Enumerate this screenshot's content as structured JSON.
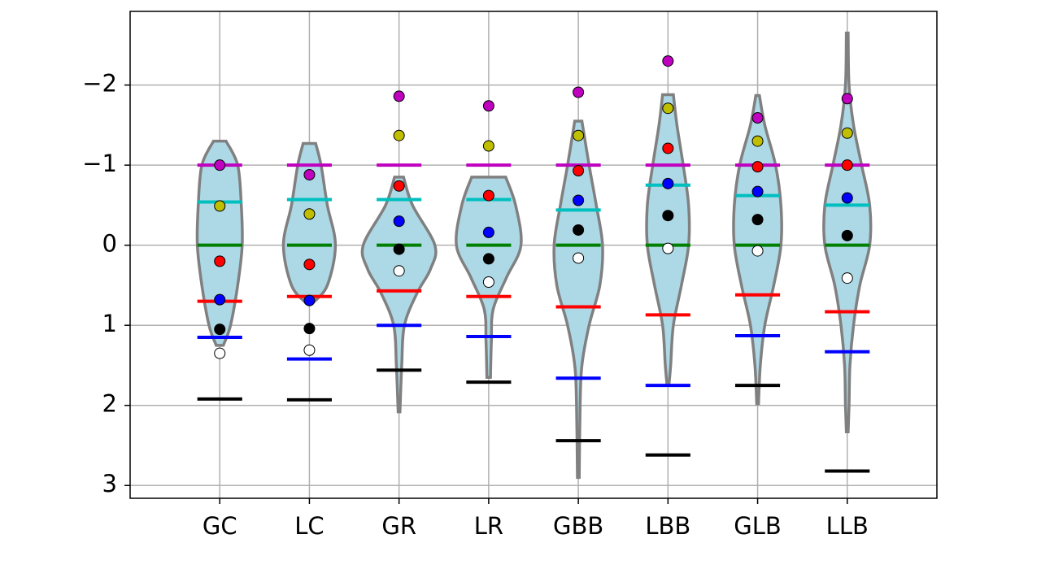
{
  "chart_data": {
    "type": "violin",
    "categories": [
      "GC",
      "LC",
      "GR",
      "LR",
      "GBB",
      "LBB",
      "GLB",
      "LLB"
    ],
    "ylim": [
      -2.92,
      3.16
    ],
    "y_inverted": true,
    "yticks": [
      {
        "value": -2,
        "label": "−2"
      },
      {
        "value": -1,
        "label": "−1"
      },
      0,
      1,
      2,
      3
    ],
    "grid": true,
    "violin_color": "#add8e6",
    "violin_edge_color": "#808080",
    "violins": [
      {
        "y": [
          -1.3,
          -1.0,
          -0.5,
          0,
          0.5,
          1.0,
          1.25
        ],
        "width": [
          0.07,
          0.2,
          0.24,
          0.25,
          0.2,
          0.12,
          0.04
        ]
      },
      {
        "y": [
          -1.27,
          -1.0,
          -0.5,
          0,
          0.5,
          0.72
        ],
        "width": [
          0.07,
          0.13,
          0.2,
          0.29,
          0.2,
          0.04
        ]
      },
      {
        "y": [
          -0.85,
          -0.5,
          0,
          0.3,
          0.6,
          1.0,
          1.5,
          2.08
        ],
        "width": [
          0.05,
          0.15,
          0.4,
          0.35,
          0.2,
          0.06,
          0.03,
          0.01
        ]
      },
      {
        "y": [
          -0.85,
          -0.5,
          0,
          0.4,
          0.8,
          1.2,
          1.65
        ],
        "width": [
          0.19,
          0.3,
          0.36,
          0.2,
          0.05,
          0.03,
          0.02
        ]
      },
      {
        "y": [
          -1.55,
          -1.0,
          -0.5,
          0,
          0.5,
          1.0,
          1.5,
          2.0,
          2.9
        ],
        "width": [
          0.04,
          0.12,
          0.2,
          0.27,
          0.24,
          0.12,
          0.04,
          0.02,
          0.01
        ]
      },
      {
        "y": [
          -1.88,
          -1.5,
          -1.0,
          -0.5,
          0,
          0.5,
          1.0,
          1.5,
          1.75
        ],
        "width": [
          0.06,
          0.1,
          0.17,
          0.23,
          0.23,
          0.15,
          0.06,
          0.03,
          0.01
        ]
      },
      {
        "y": [
          -1.87,
          -1.5,
          -1.0,
          -0.5,
          0,
          0.5,
          1.0,
          1.5,
          1.98
        ],
        "width": [
          0.02,
          0.08,
          0.2,
          0.26,
          0.26,
          0.18,
          0.08,
          0.03,
          0.01
        ]
      },
      {
        "y": [
          -2.65,
          -2.0,
          -1.5,
          -1.0,
          -0.5,
          0,
          0.5,
          1.0,
          1.5,
          2.0,
          2.33
        ],
        "width": [
          0.01,
          0.02,
          0.07,
          0.16,
          0.25,
          0.25,
          0.14,
          0.07,
          0.03,
          0.02,
          0.01
        ]
      }
    ],
    "lines": [
      {
        "color": "#bf00bf",
        "values": [
          -1,
          -1,
          -1,
          -1,
          -1,
          -1,
          -1,
          -1
        ]
      },
      {
        "color": "#00bfbf",
        "values": [
          -0.54,
          -0.57,
          -0.57,
          -0.57,
          -0.44,
          -0.75,
          -0.62,
          -0.5
        ]
      },
      {
        "color": "#008000",
        "values": [
          0,
          0,
          0,
          0,
          0,
          0,
          0,
          0
        ]
      },
      {
        "color": "#ff0000",
        "values": [
          0.7,
          0.64,
          0.57,
          0.64,
          0.77,
          0.87,
          0.62,
          0.83
        ]
      },
      {
        "color": "#0000ff",
        "values": [
          1.15,
          1.42,
          1.0,
          1.14,
          1.66,
          1.75,
          1.13,
          1.33
        ]
      },
      {
        "color": "#000000",
        "values": [
          1.92,
          1.93,
          1.56,
          1.71,
          2.44,
          2.62,
          1.75,
          2.82
        ]
      }
    ],
    "series": [
      {
        "color": "#bf00bf",
        "values": [
          -1.0,
          -0.88,
          -1.86,
          -1.74,
          -1.91,
          -2.3,
          -1.59,
          -1.83
        ]
      },
      {
        "color": "#bfbf00",
        "values": [
          -0.49,
          -0.39,
          -1.37,
          -1.24,
          -1.37,
          -1.71,
          -1.3,
          -1.4
        ]
      },
      {
        "color": "#ff0000",
        "values": [
          0.2,
          0.24,
          -0.74,
          -0.62,
          -0.93,
          -1.21,
          -0.98,
          -1.0
        ]
      },
      {
        "color": "#0000ff",
        "values": [
          0.68,
          0.69,
          -0.3,
          -0.16,
          -0.56,
          -0.77,
          -0.67,
          -0.59
        ]
      },
      {
        "color": "#000000",
        "values": [
          1.05,
          1.04,
          0.05,
          0.17,
          -0.19,
          -0.37,
          -0.32,
          -0.12
        ]
      },
      {
        "color": "#ffffff",
        "values": [
          1.35,
          1.31,
          0.32,
          0.46,
          0.16,
          0.04,
          0.07,
          0.41
        ]
      }
    ]
  }
}
